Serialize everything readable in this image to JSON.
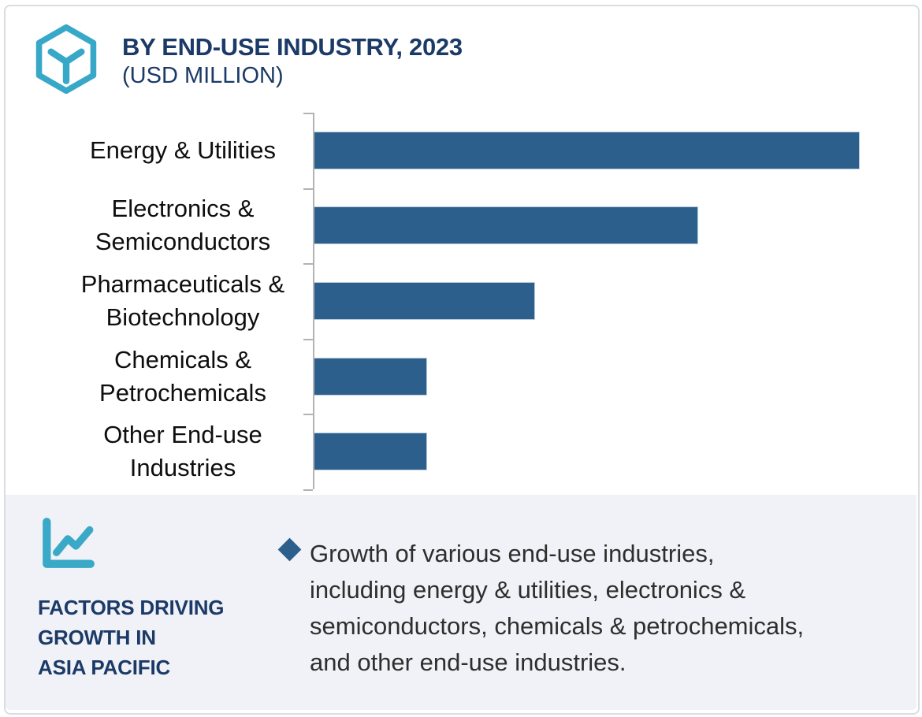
{
  "header": {
    "title_line1": "BY END-USE INDUSTRY, 2023",
    "title_line2": "(USD MILLION)",
    "title_color": "#1b3a67",
    "logo_color": "#38a8c8"
  },
  "chart_data": {
    "type": "bar",
    "orientation": "horizontal",
    "title": "BY END-USE INDUSTRY, 2023 (USD MILLION)",
    "unit": "USD Million",
    "categories": [
      "Energy & Utilities",
      "Electronics & Semiconductors",
      "Pharmaceuticals & Biotechnology",
      "Chemicals & Petrochemicals",
      "Other End-use Industries"
    ],
    "values": [
      100,
      70.4,
      40.5,
      20.8,
      20.8
    ],
    "value_note": "relative bar lengths, % of largest bar; no numeric axis labels shown",
    "value_labels_shown": false,
    "grid": false,
    "bar_color": "#2d5f8d",
    "bar_edge_color": "#b5cadd",
    "axis_color": "#b3b3b3",
    "label_color": "#0e0e0e",
    "xlim": [
      0,
      109
    ]
  },
  "footer": {
    "background": "#f0f2f7",
    "icon": "line-chart-icon",
    "icon_color": "#3aa9c8",
    "heading_lines": [
      "FACTORS DRIVING",
      "GROWTH IN",
      "ASIA PACIFIC"
    ],
    "bullet_marker": "diamond",
    "bullet_color": "#2d5f8d",
    "bullet_lines": [
      "Growth of various end-use industries,",
      "including energy & utilities, electronics &",
      "semiconductors, chemicals & petrochemicals,",
      "and other end-use industries."
    ]
  }
}
